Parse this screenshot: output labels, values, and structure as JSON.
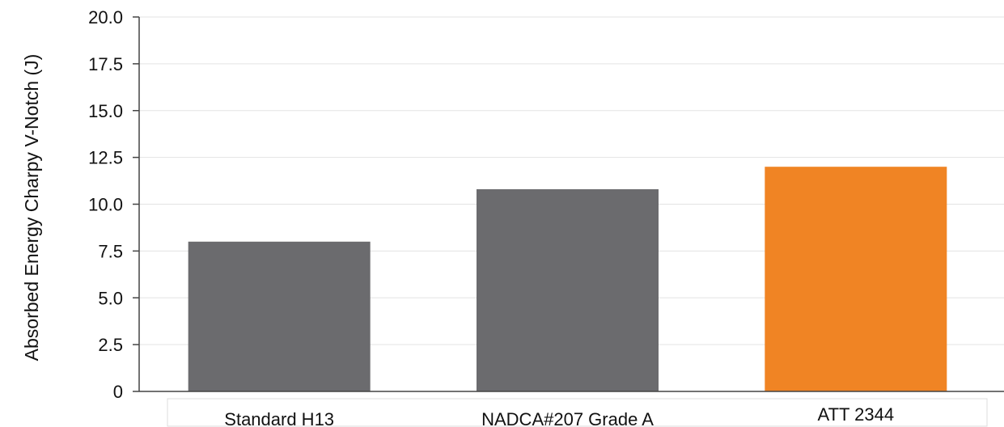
{
  "chart_data": {
    "type": "bar",
    "title": "",
    "xlabel": "",
    "ylabel": "Absorbed Energy Charpy V-Notch (J)",
    "categories": [
      "Standard H13",
      "NADCA#207 Grade A",
      "ATT 2344"
    ],
    "values": [
      8.0,
      10.8,
      12.0
    ],
    "bar_colors": [
      "#6b6b6e",
      "#6b6b6e",
      "#f08424"
    ],
    "ylim": [
      0,
      20
    ],
    "yticks": [
      "0",
      "2.5",
      "5.0",
      "7.5",
      "10.0",
      "12.5",
      "15.0",
      "17.5",
      "20.0"
    ],
    "grid": true,
    "legend": "none"
  }
}
